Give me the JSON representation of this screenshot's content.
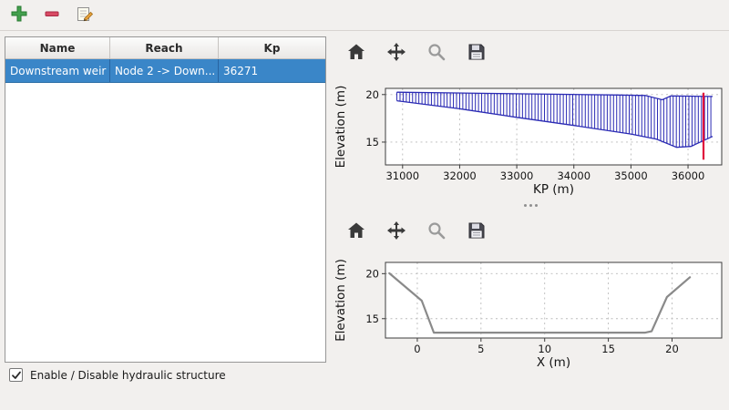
{
  "main_toolbar": {
    "buttons": [
      {
        "name": "add-structure",
        "icon": "plus-icon"
      },
      {
        "name": "remove-structure",
        "icon": "minus-icon"
      },
      {
        "name": "edit-structure",
        "icon": "edit-icon"
      }
    ]
  },
  "structures_table": {
    "columns": [
      "Name",
      "Reach",
      "Kp"
    ],
    "rows": [
      {
        "name": "Downstream weir",
        "reach": "Node 2 -> Down...",
        "kp": "36271"
      }
    ],
    "selected_index": 0,
    "selection_color": "#3a86c8"
  },
  "enable_checkbox": {
    "label": "Enable / Disable hydraulic structure",
    "checked": true
  },
  "plot_toolbars": {
    "icons": [
      "home-icon",
      "pan-icon",
      "zoom-icon",
      "save-icon"
    ]
  },
  "chart_data": [
    {
      "type": "area",
      "title": "",
      "xlabel": "KP (m)",
      "ylabel": "Elevation (m)",
      "xlim": [
        30700,
        36590
      ],
      "ylim": [
        12.6,
        20.65
      ],
      "xticks": [
        31000,
        32000,
        33000,
        34000,
        35000,
        36000
      ],
      "yticks": [
        15,
        20
      ],
      "grid": true,
      "color": "#2a2ab4",
      "hatch": "vertical",
      "hatch_step": 55,
      "x_start": 30900,
      "x_end": 36430,
      "top": {
        "x": [
          30900,
          34800,
          35250,
          35550,
          35700,
          36430
        ],
        "y": [
          20.25,
          19.95,
          19.9,
          19.45,
          19.85,
          19.8
        ]
      },
      "bottom": {
        "x": [
          30900,
          32000,
          33000,
          34000,
          35000,
          35450,
          35800,
          36050,
          36430
        ],
        "y": [
          19.35,
          18.5,
          17.6,
          16.75,
          15.85,
          15.3,
          14.45,
          14.55,
          15.6
        ]
      },
      "marker_line": {
        "x": 36271,
        "y0": 13.15,
        "y1": 20.2,
        "color": "#e0103c"
      }
    },
    {
      "type": "line",
      "title": "",
      "xlabel": "X (m)",
      "ylabel": "Elevation (m)",
      "xlim": [
        -2.5,
        23.9
      ],
      "ylim": [
        12.85,
        21.25
      ],
      "xticks": [
        0,
        5,
        10,
        15,
        20
      ],
      "yticks": [
        15,
        20
      ],
      "grid": true,
      "color": "#8a8a8a",
      "x": [
        -2.2,
        0.35,
        1.3,
        17.9,
        18.4,
        19.6,
        21.4
      ],
      "y": [
        20.05,
        17.0,
        13.45,
        13.45,
        13.6,
        17.4,
        19.6
      ]
    }
  ]
}
